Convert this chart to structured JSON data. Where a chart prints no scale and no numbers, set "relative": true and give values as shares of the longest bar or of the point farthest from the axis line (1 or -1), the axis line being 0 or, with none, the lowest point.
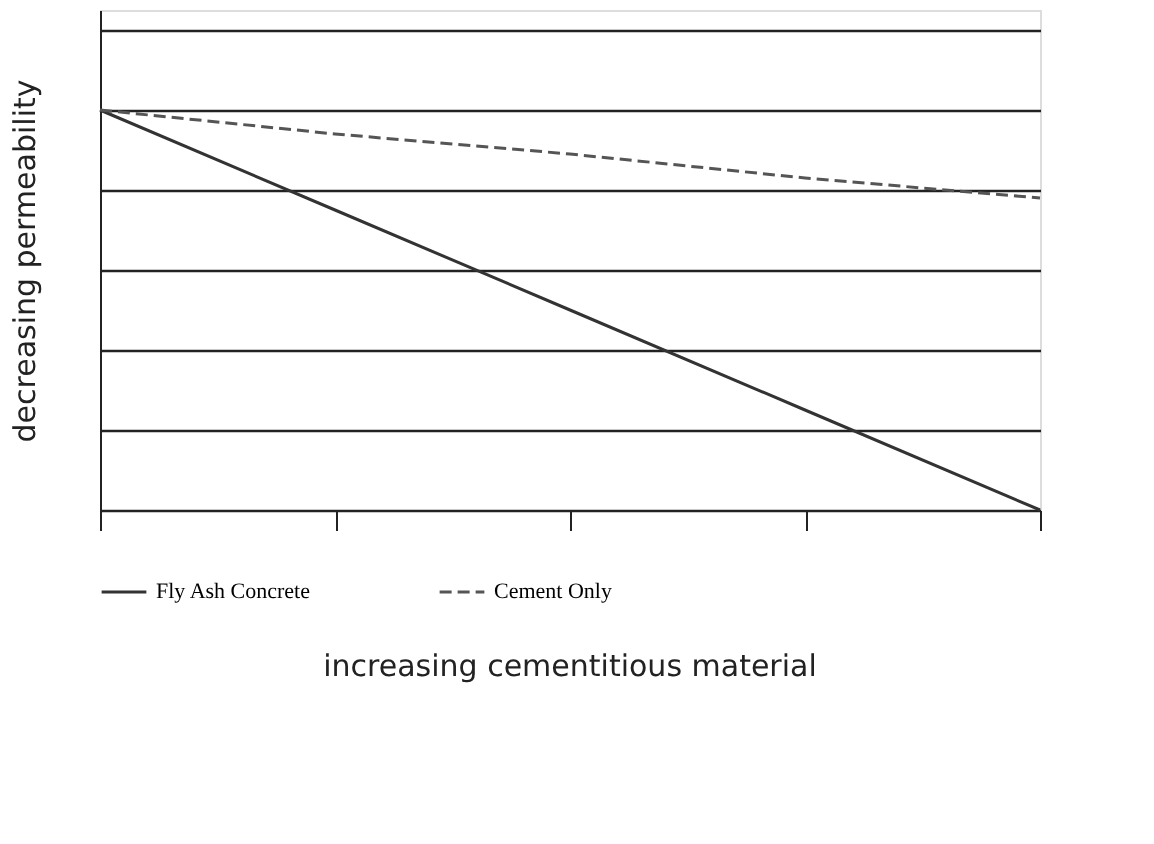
{
  "chart_data": {
    "type": "line",
    "relative": true,
    "xlabel": "increasing cementitious material",
    "ylabel": "decreasing permeability",
    "categories": [
      null,
      null,
      null,
      null,
      null
    ],
    "series": [
      {
        "name": "Fly Ash Concrete",
        "color": "#333333",
        "line_style": "solid",
        "values": [
          1,
          0.75,
          0.5,
          0.25,
          0
        ]
      },
      {
        "name": "Cement Only",
        "color": "#555555",
        "line_style": "dashed",
        "values": [
          1,
          0.94,
          0.89,
          0.83,
          0.78
        ]
      }
    ],
    "grid": "y",
    "legend": "bottom",
    "tick_labels": false,
    "marker": "none"
  }
}
